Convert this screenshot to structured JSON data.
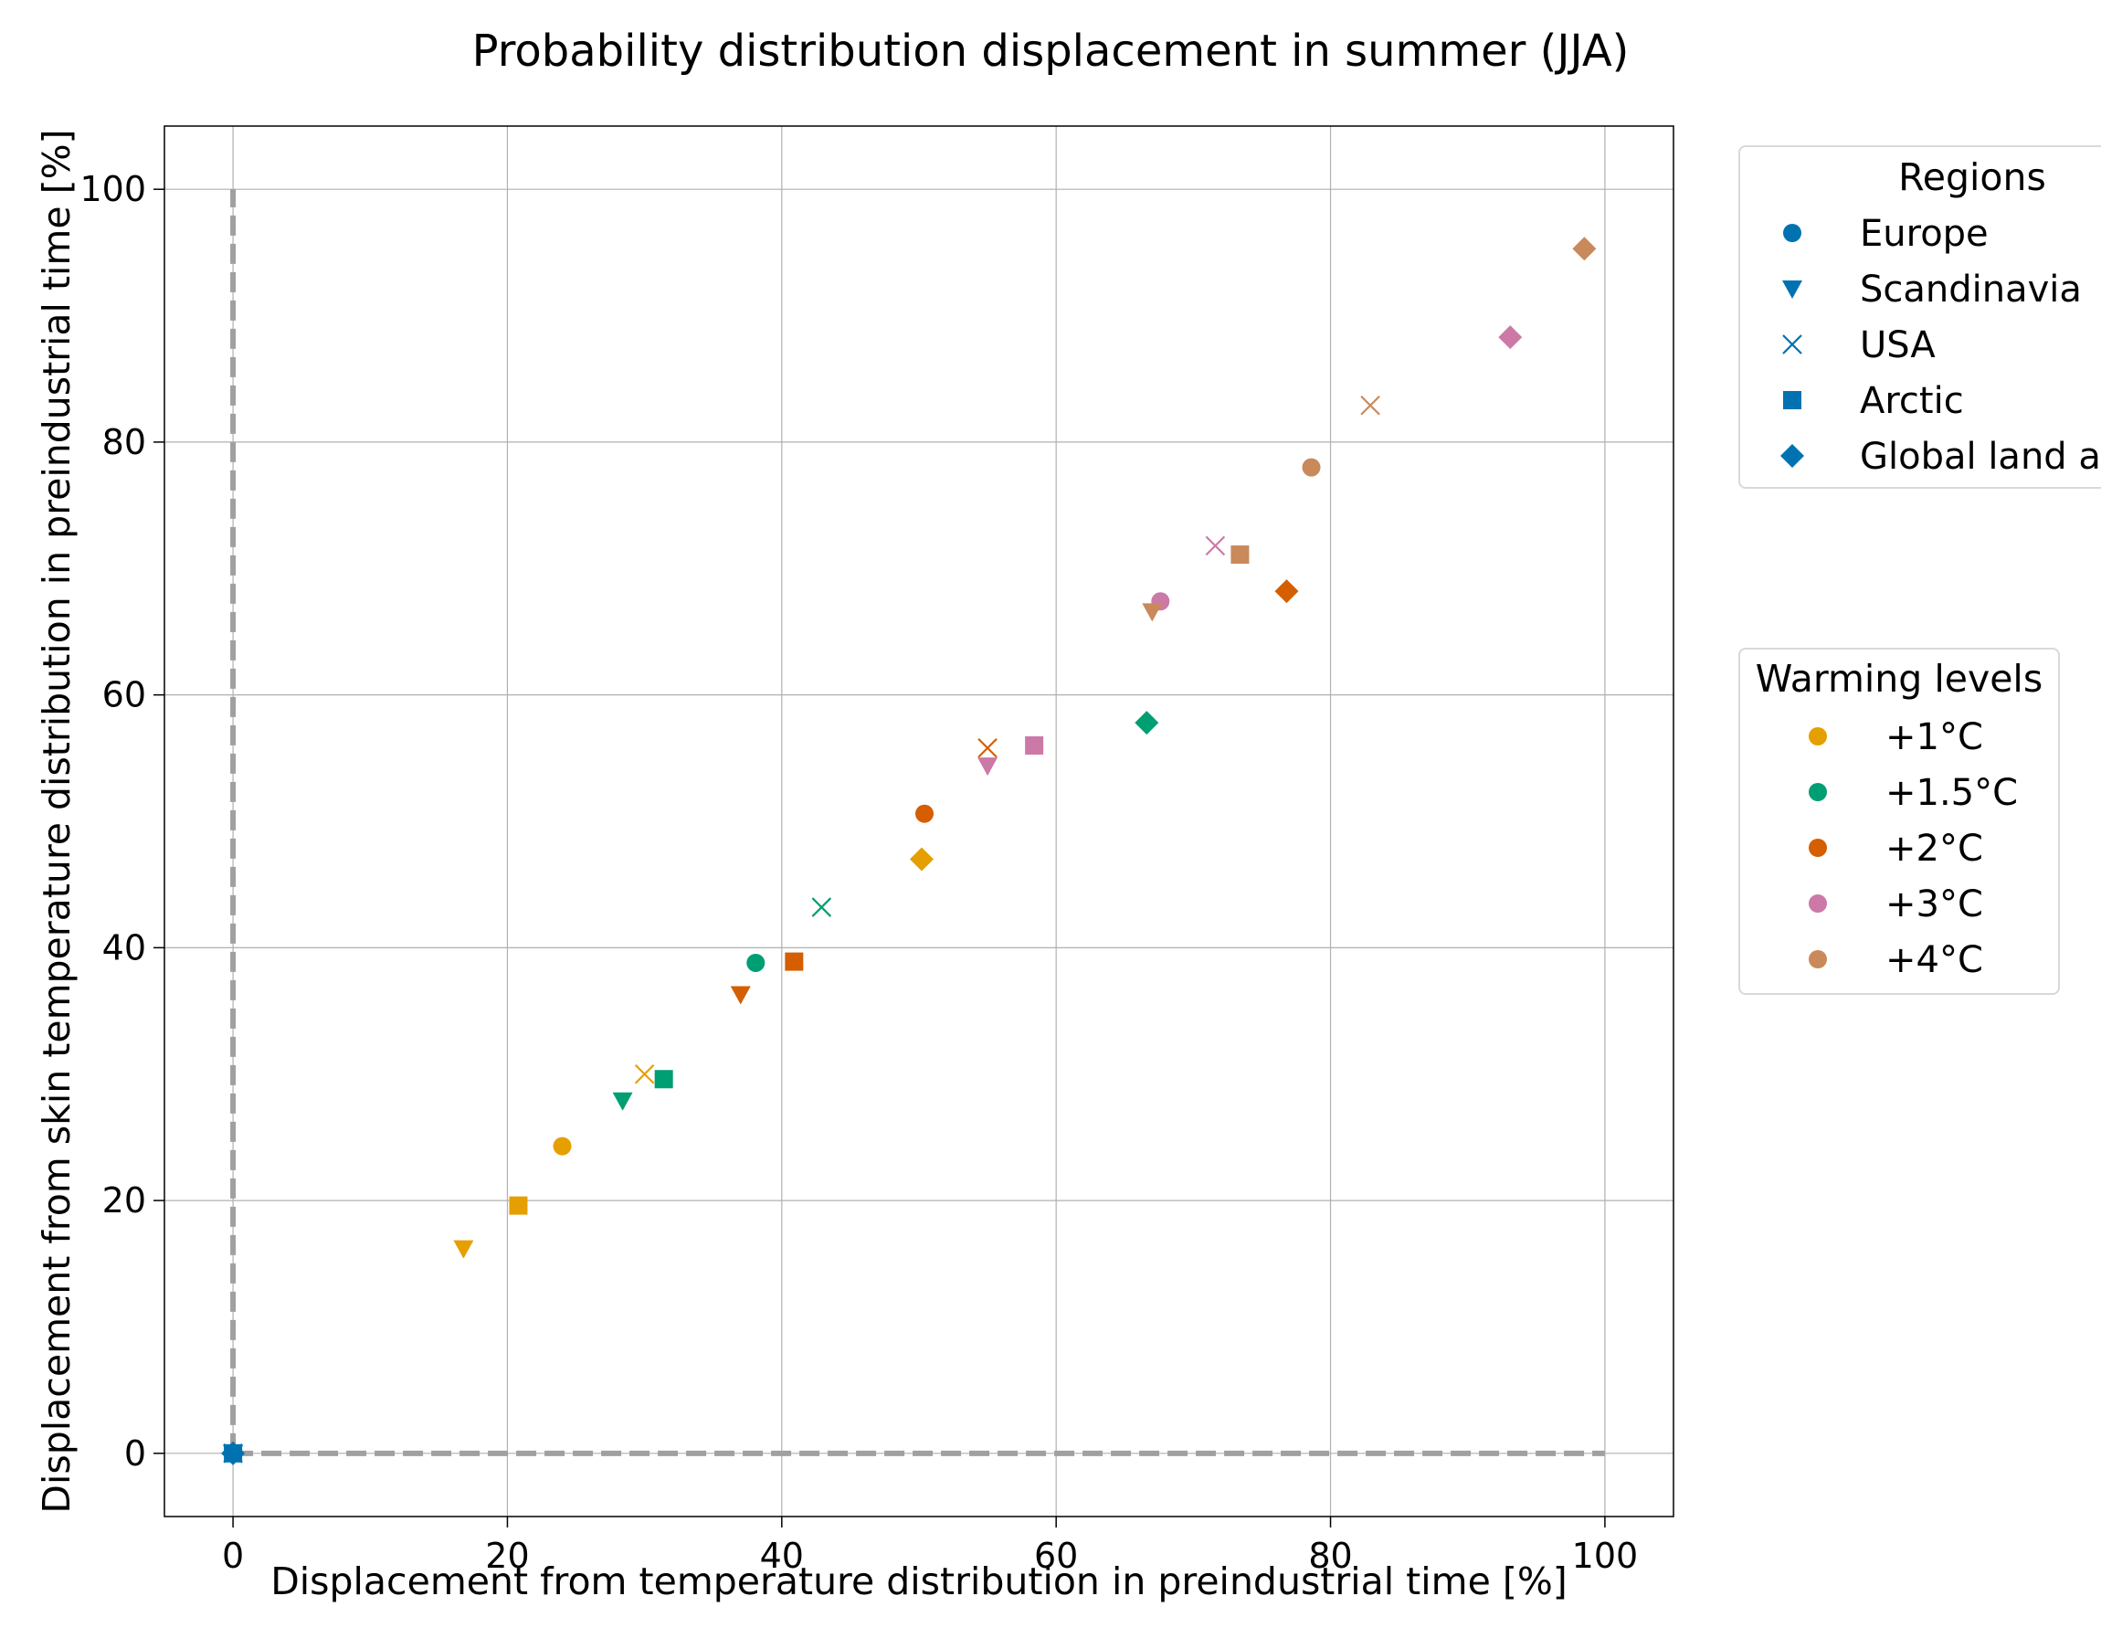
{
  "chart_data": {
    "type": "scatter",
    "title": "Probability distribution displacement in summer (JJA)",
    "xlabel": "Displacement from temperature distribution in preindustrial time [%]",
    "ylabel": "Displacement from skin temperature distribution in preindustrial time [%]",
    "xlim": [
      -5,
      105
    ],
    "ylim": [
      -5,
      105
    ],
    "xticks": [
      0,
      20,
      40,
      60,
      80,
      100
    ],
    "yticks": [
      0,
      20,
      40,
      60,
      80,
      100
    ],
    "grid": true,
    "reference_lines": [
      {
        "style": "dashed",
        "color": "#a0a0a0",
        "x": [
          0,
          0
        ],
        "y": [
          0,
          100
        ]
      },
      {
        "style": "dashed",
        "color": "#a0a0a0",
        "x": [
          0,
          100
        ],
        "y": [
          0,
          0
        ]
      }
    ],
    "legend_regions": {
      "title": "Regions",
      "placement": "outside-upper-right",
      "entries": [
        {
          "label": "Europe",
          "marker": "circle"
        },
        {
          "label": "Scandinavia",
          "marker": "triangle-down"
        },
        {
          "label": "USA",
          "marker": "x"
        },
        {
          "label": "Arctic",
          "marker": "square"
        },
        {
          "label": "Global land a",
          "marker": "diamond"
        }
      ],
      "color": "#0072b2"
    },
    "legend_warming": {
      "title": "Warming levels",
      "placement": "outside-right",
      "entries": [
        {
          "label": "+1°C",
          "color": "#e69f00"
        },
        {
          "label": "+1.5°C",
          "color": "#009e73"
        },
        {
          "label": "+2°C",
          "color": "#d55e00"
        },
        {
          "label": "+3°C",
          "color": "#cc79a7"
        },
        {
          "label": "+4°C",
          "color": "#c9895b"
        }
      ]
    },
    "points": [
      {
        "region": "Europe",
        "warming": "0",
        "x": 0,
        "y": 0
      },
      {
        "region": "Scandinavia",
        "warming": "0",
        "x": 0,
        "y": 0
      },
      {
        "region": "USA",
        "warming": "0",
        "x": 0,
        "y": 0
      },
      {
        "region": "Arctic",
        "warming": "0",
        "x": 0,
        "y": 0
      },
      {
        "region": "Global land a",
        "warming": "0",
        "x": 0,
        "y": 0
      },
      {
        "region": "Europe",
        "warming": "+1°C",
        "x": 24.0,
        "y": 24.3
      },
      {
        "region": "Scandinavia",
        "warming": "+1°C",
        "x": 16.8,
        "y": 16.2
      },
      {
        "region": "USA",
        "warming": "+1°C",
        "x": 30.0,
        "y": 30.0
      },
      {
        "region": "Arctic",
        "warming": "+1°C",
        "x": 20.8,
        "y": 19.6
      },
      {
        "region": "Global land a",
        "warming": "+1°C",
        "x": 50.2,
        "y": 47.0
      },
      {
        "region": "Europe",
        "warming": "+1.5°C",
        "x": 38.1,
        "y": 38.8
      },
      {
        "region": "Scandinavia",
        "warming": "+1.5°C",
        "x": 28.4,
        "y": 27.9
      },
      {
        "region": "USA",
        "warming": "+1.5°C",
        "x": 42.9,
        "y": 43.2
      },
      {
        "region": "Arctic",
        "warming": "+1.5°C",
        "x": 31.4,
        "y": 29.6
      },
      {
        "region": "Global land a",
        "warming": "+1.5°C",
        "x": 66.6,
        "y": 57.8
      },
      {
        "region": "Europe",
        "warming": "+2°C",
        "x": 50.4,
        "y": 50.6
      },
      {
        "region": "Scandinavia",
        "warming": "+2°C",
        "x": 37.0,
        "y": 36.3
      },
      {
        "region": "USA",
        "warming": "+2°C",
        "x": 55.0,
        "y": 55.8
      },
      {
        "region": "Arctic",
        "warming": "+2°C",
        "x": 40.9,
        "y": 38.9
      },
      {
        "region": "Global land a",
        "warming": "+2°C",
        "x": 76.8,
        "y": 68.2
      },
      {
        "region": "Europe",
        "warming": "+3°C",
        "x": 67.6,
        "y": 67.4
      },
      {
        "region": "Scandinavia",
        "warming": "+3°C",
        "x": 55.0,
        "y": 54.4
      },
      {
        "region": "USA",
        "warming": "+3°C",
        "x": 71.6,
        "y": 71.8
      },
      {
        "region": "Arctic",
        "warming": "+3°C",
        "x": 58.4,
        "y": 56.0
      },
      {
        "region": "Global land a",
        "warming": "+3°C",
        "x": 93.1,
        "y": 88.3
      },
      {
        "region": "Europe",
        "warming": "+4°C",
        "x": 78.6,
        "y": 78.0
      },
      {
        "region": "Scandinavia",
        "warming": "+4°C",
        "x": 67.0,
        "y": 66.6
      },
      {
        "region": "USA",
        "warming": "+4°C",
        "x": 82.9,
        "y": 82.9
      },
      {
        "region": "Arctic",
        "warming": "+4°C",
        "x": 73.4,
        "y": 71.1
      },
      {
        "region": "Global land a",
        "warming": "+4°C",
        "x": 98.5,
        "y": 95.3
      }
    ]
  },
  "colors": {
    "baseline": "#0072b2",
    "grid": "#b0b0b0",
    "reference": "#a0a0a0",
    "legend_border": "#d9d9d9"
  }
}
